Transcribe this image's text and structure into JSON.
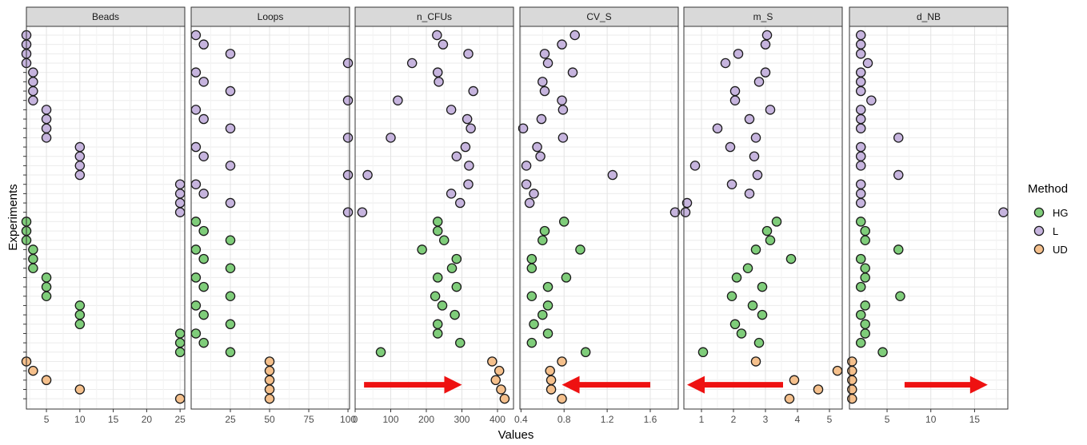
{
  "chart_data": {
    "type": "scatter",
    "xlabel": "Values",
    "ylabel": "Experiments",
    "legend": {
      "title": "Method",
      "position": "right",
      "entries": [
        {
          "name": "HG",
          "color": "#7fcd7a"
        },
        {
          "name": "L",
          "color": "#c6b4de"
        },
        {
          "name": "UD",
          "color": "#f5c08c"
        }
      ]
    },
    "marker_stroke": "#1a1a1a",
    "arrow_color": "#ee1111",
    "strip_color": "#d9d9d9",
    "grid": true,
    "n_rows": 40,
    "panels": [
      {
        "name": "Beads",
        "xlim": [
          2,
          25.7
        ],
        "ticks": [
          5,
          10,
          15,
          20,
          25
        ],
        "tick_labels": [
          "5",
          "10",
          "15",
          "20",
          "25"
        ],
        "points": {
          "L": [
            [
              1,
              2
            ],
            [
              2,
              2
            ],
            [
              3,
              2
            ],
            [
              4,
              2
            ],
            [
              5,
              3
            ],
            [
              6,
              3
            ],
            [
              7,
              3
            ],
            [
              8,
              3
            ],
            [
              9,
              5
            ],
            [
              10,
              5
            ],
            [
              11,
              5
            ],
            [
              12,
              5
            ],
            [
              13,
              10
            ],
            [
              14,
              10
            ],
            [
              15,
              10
            ],
            [
              16,
              10
            ],
            [
              17,
              25
            ],
            [
              18,
              25
            ],
            [
              19,
              25
            ],
            [
              20,
              25
            ]
          ],
          "HG": [
            [
              21,
              2
            ],
            [
              22,
              2
            ],
            [
              23,
              2
            ],
            [
              24,
              3
            ],
            [
              25,
              3
            ],
            [
              26,
              3
            ],
            [
              27,
              5
            ],
            [
              28,
              5
            ],
            [
              29,
              5
            ],
            [
              30,
              10
            ],
            [
              31,
              10
            ],
            [
              32,
              10
            ],
            [
              33,
              25
            ],
            [
              34,
              25
            ],
            [
              35,
              25
            ]
          ],
          "UD": [
            [
              36,
              2
            ],
            [
              37,
              3
            ],
            [
              38,
              5
            ],
            [
              39,
              10
            ],
            [
              40,
              25
            ]
          ]
        }
      },
      {
        "name": "Loops",
        "xlim": [
          0,
          101
        ],
        "ticks": [
          25,
          50,
          75,
          100
        ],
        "tick_labels": [
          "25",
          "50",
          "75",
          "100"
        ],
        "points": {
          "L": [
            [
              1,
              3
            ],
            [
              2,
              8
            ],
            [
              3,
              25
            ],
            [
              4,
              100
            ],
            [
              5,
              3
            ],
            [
              6,
              8
            ],
            [
              7,
              25
            ],
            [
              8,
              100
            ],
            [
              9,
              3
            ],
            [
              10,
              8
            ],
            [
              11,
              25
            ],
            [
              12,
              100
            ],
            [
              13,
              3
            ],
            [
              14,
              8
            ],
            [
              15,
              25
            ],
            [
              16,
              100
            ],
            [
              17,
              3
            ],
            [
              18,
              8
            ],
            [
              19,
              25
            ],
            [
              20,
              100
            ]
          ],
          "HG": [
            [
              21,
              3
            ],
            [
              22,
              8
            ],
            [
              23,
              25
            ],
            [
              24,
              3
            ],
            [
              25,
              8
            ],
            [
              26,
              25
            ],
            [
              27,
              3
            ],
            [
              28,
              8
            ],
            [
              29,
              25
            ],
            [
              30,
              3
            ],
            [
              31,
              8
            ],
            [
              32,
              25
            ],
            [
              33,
              3
            ],
            [
              34,
              8
            ],
            [
              35,
              25
            ]
          ],
          "UD": [
            [
              36,
              50
            ],
            [
              37,
              50
            ],
            [
              38,
              50
            ],
            [
              39,
              50
            ],
            [
              40,
              50
            ]
          ]
        }
      },
      {
        "name": "n_CFUs",
        "xlim": [
          0,
          445
        ],
        "ticks": [
          0,
          100,
          200,
          300,
          400
        ],
        "tick_labels": [
          "0",
          "100",
          "200",
          "300",
          "400"
        ],
        "points": {
          "L": [
            [
              1,
              230
            ],
            [
              2,
              247
            ],
            [
              3,
              318
            ],
            [
              4,
              160
            ],
            [
              5,
              232
            ],
            [
              6,
              235
            ],
            [
              7,
              332
            ],
            [
              8,
              120
            ],
            [
              9,
              270
            ],
            [
              10,
              315
            ],
            [
              11,
              325
            ],
            [
              12,
              100
            ],
            [
              13,
              310
            ],
            [
              14,
              285
            ],
            [
              15,
              320
            ],
            [
              16,
              35
            ],
            [
              17,
              318
            ],
            [
              18,
              270
            ],
            [
              19,
              295
            ],
            [
              20,
              20
            ]
          ],
          "HG": [
            [
              21,
              232
            ],
            [
              22,
              232
            ],
            [
              23,
              250
            ],
            [
              24,
              188
            ],
            [
              25,
              285
            ],
            [
              26,
              272
            ],
            [
              27,
              232
            ],
            [
              28,
              285
            ],
            [
              29,
              225
            ],
            [
              30,
              245
            ],
            [
              31,
              280
            ],
            [
              32,
              232
            ],
            [
              33,
              232
            ],
            [
              34,
              295
            ],
            [
              35,
              72
            ]
          ],
          "UD": [
            [
              36,
              385
            ],
            [
              37,
              405
            ],
            [
              38,
              395
            ],
            [
              39,
              410
            ],
            [
              40,
              420
            ]
          ]
        }
      },
      {
        "name": "CV_S",
        "xlim": [
          0.39,
          1.86
        ],
        "ticks": [
          0.4,
          0.8,
          1.2,
          1.6
        ],
        "tick_labels": [
          "0.4",
          "0.8",
          "1.2",
          "1.6"
        ],
        "points": {
          "L": [
            [
              1,
              0.9
            ],
            [
              2,
              0.78
            ],
            [
              3,
              0.62
            ],
            [
              4,
              0.65
            ],
            [
              5,
              0.88
            ],
            [
              6,
              0.6
            ],
            [
              7,
              0.62
            ],
            [
              8,
              0.78
            ],
            [
              9,
              0.79
            ],
            [
              10,
              0.59
            ],
            [
              11,
              0.42
            ],
            [
              12,
              0.79
            ],
            [
              13,
              0.55
            ],
            [
              14,
              0.58
            ],
            [
              15,
              0.45
            ],
            [
              16,
              1.25
            ],
            [
              17,
              0.45
            ],
            [
              18,
              0.52
            ],
            [
              19,
              0.48
            ],
            [
              20,
              1.83
            ]
          ],
          "HG": [
            [
              21,
              0.8
            ],
            [
              22,
              0.62
            ],
            [
              23,
              0.6
            ],
            [
              24,
              0.95
            ],
            [
              25,
              0.5
            ],
            [
              26,
              0.5
            ],
            [
              27,
              0.82
            ],
            [
              28,
              0.65
            ],
            [
              29,
              0.5
            ],
            [
              30,
              0.65
            ],
            [
              31,
              0.6
            ],
            [
              32,
              0.52
            ],
            [
              33,
              0.65
            ],
            [
              34,
              0.5
            ],
            [
              35,
              1.0
            ]
          ],
          "UD": [
            [
              36,
              0.78
            ],
            [
              37,
              0.67
            ],
            [
              38,
              0.68
            ],
            [
              39,
              0.68
            ],
            [
              40,
              0.78
            ]
          ]
        }
      },
      {
        "name": "m_S",
        "xlim": [
          0.45,
          5.4
        ],
        "ticks": [
          1,
          2,
          3,
          4,
          5
        ],
        "tick_labels": [
          "1",
          "2",
          "3",
          "4",
          "5"
        ],
        "points": {
          "L": [
            [
              1,
              3.05
            ],
            [
              2,
              3.0
            ],
            [
              3,
              2.15
            ],
            [
              4,
              1.75
            ],
            [
              5,
              3.0
            ],
            [
              6,
              2.8
            ],
            [
              7,
              2.05
            ],
            [
              8,
              2.05
            ],
            [
              9,
              3.15
            ],
            [
              10,
              2.5
            ],
            [
              11,
              1.5
            ],
            [
              12,
              2.7
            ],
            [
              13,
              1.9
            ],
            [
              14,
              2.65
            ],
            [
              15,
              0.8
            ],
            [
              16,
              2.75
            ],
            [
              17,
              1.95
            ],
            [
              18,
              2.5
            ],
            [
              19,
              0.55
            ],
            [
              20,
              0.5
            ]
          ],
          "HG": [
            [
              21,
              3.35
            ],
            [
              22,
              3.05
            ],
            [
              23,
              3.15
            ],
            [
              24,
              2.7
            ],
            [
              25,
              3.8
            ],
            [
              26,
              2.45
            ],
            [
              27,
              2.1
            ],
            [
              28,
              2.9
            ],
            [
              29,
              1.95
            ],
            [
              30,
              2.6
            ],
            [
              31,
              2.9
            ],
            [
              32,
              2.05
            ],
            [
              33,
              2.25
            ],
            [
              34,
              2.8
            ],
            [
              35,
              1.05
            ]
          ],
          "UD": [
            [
              36,
              2.7
            ],
            [
              37,
              5.25
            ],
            [
              38,
              3.9
            ],
            [
              39,
              4.65
            ],
            [
              40,
              3.75
            ]
          ]
        }
      },
      {
        "name": "d_NB",
        "xlim": [
          0.7,
          18.8
        ],
        "ticks": [
          5,
          10,
          15
        ],
        "tick_labels": [
          "5",
          "10",
          "15"
        ],
        "points": {
          "L": [
            [
              1,
              2
            ],
            [
              2,
              2
            ],
            [
              3,
              2
            ],
            [
              4,
              2.8
            ],
            [
              5,
              2
            ],
            [
              6,
              2
            ],
            [
              7,
              2
            ],
            [
              8,
              3.2
            ],
            [
              9,
              2
            ],
            [
              10,
              2
            ],
            [
              11,
              2
            ],
            [
              12,
              6.3
            ],
            [
              13,
              2
            ],
            [
              14,
              2
            ],
            [
              15,
              2
            ],
            [
              16,
              6.3
            ],
            [
              17,
              2
            ],
            [
              18,
              2
            ],
            [
              19,
              2
            ],
            [
              20,
              18.3
            ]
          ],
          "HG": [
            [
              21,
              2
            ],
            [
              22,
              2.5
            ],
            [
              23,
              2.5
            ],
            [
              24,
              6.3
            ],
            [
              25,
              2
            ],
            [
              26,
              2.5
            ],
            [
              27,
              2.5
            ],
            [
              28,
              2
            ],
            [
              29,
              6.5
            ],
            [
              30,
              2.5
            ],
            [
              31,
              2
            ],
            [
              32,
              2.5
            ],
            [
              33,
              2.5
            ],
            [
              34,
              2
            ],
            [
              35,
              4.5
            ]
          ],
          "UD": [
            [
              36,
              1
            ],
            [
              37,
              1
            ],
            [
              38,
              1
            ],
            [
              39,
              1
            ],
            [
              40,
              1
            ]
          ]
        }
      }
    ],
    "annotations": [
      {
        "panel": "n_CFUs",
        "type": "arrow",
        "direction": "right",
        "x_from": 25,
        "x_to": 300,
        "row": 38.5
      },
      {
        "panel": "CV_S",
        "type": "arrow",
        "direction": "left",
        "x_from": 1.6,
        "x_to": 0.78,
        "row": 38.5
      },
      {
        "panel": "m_S",
        "type": "arrow",
        "direction": "left",
        "x_from": 3.55,
        "x_to": 0.55,
        "row": 38.5
      },
      {
        "panel": "d_NB",
        "type": "arrow",
        "direction": "right",
        "x_from": 7,
        "x_to": 16.5,
        "row": 38.5
      }
    ]
  }
}
